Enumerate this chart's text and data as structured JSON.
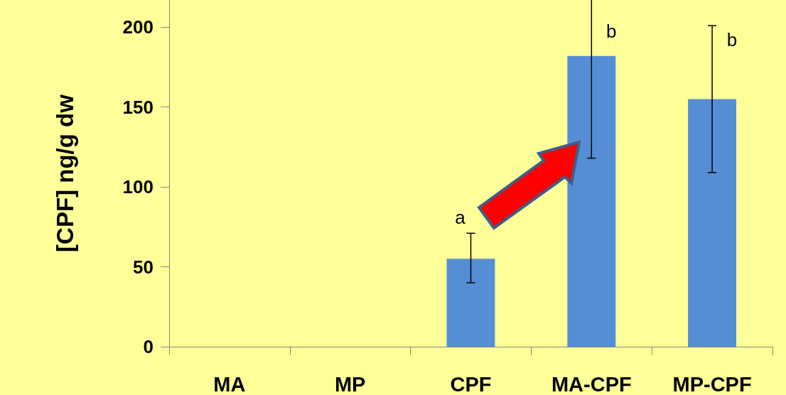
{
  "chart_data": {
    "type": "bar",
    "ylabel": "[CPF] ng/g dw",
    "categories": [
      "MA",
      "MP",
      "CPF",
      "MA-CPF",
      "MP-CPF"
    ],
    "values": [
      0,
      0,
      55,
      182,
      155
    ],
    "errors": [
      null,
      null,
      [
        40,
        71
      ],
      [
        118,
        217
      ],
      [
        109,
        201
      ]
    ],
    "color": "#558ed5",
    "ylim": [
      0,
      217
    ],
    "yticks": [
      0,
      50,
      100,
      150,
      200
    ],
    "annotations": [
      {
        "text": "a",
        "x": "CPF",
        "y": 71
      },
      {
        "text": "b",
        "x": "MA-CPF",
        "y": 217
      },
      {
        "text": "b",
        "x": "MP-CPF",
        "y": 201
      }
    ],
    "grid": false
  }
}
